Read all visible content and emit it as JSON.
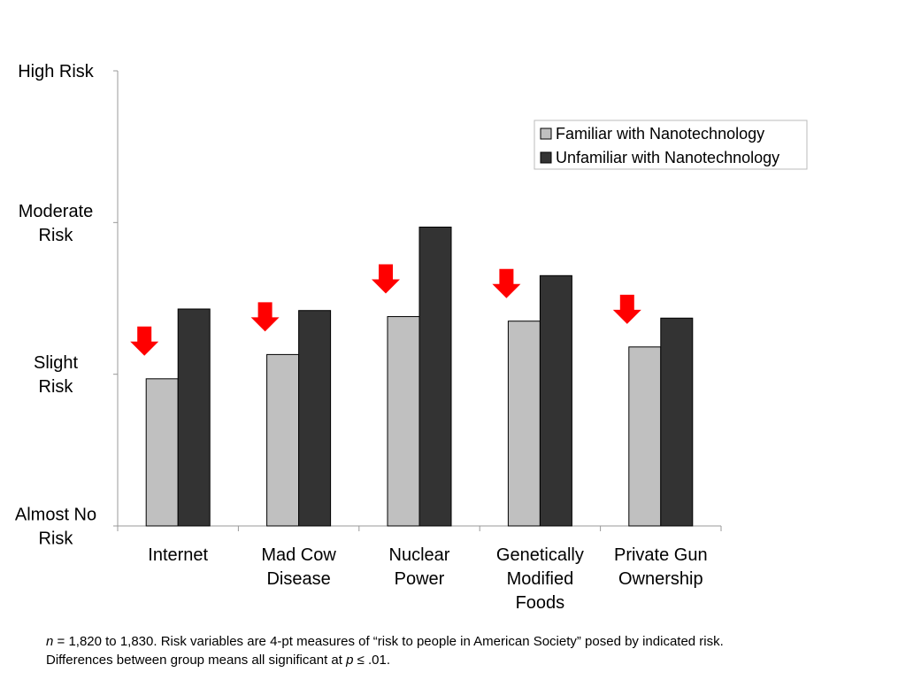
{
  "chart_data": {
    "type": "bar",
    "title": "",
    "xlabel": "",
    "ylabel": "",
    "categories": [
      [
        "Internet"
      ],
      [
        "Mad Cow",
        "Disease"
      ],
      [
        "Nuclear",
        "Power"
      ],
      [
        "Genetically",
        "Modified",
        "Foods"
      ],
      [
        "Private Gun",
        "Ownership"
      ]
    ],
    "category_names": [
      "Internet",
      "Mad Cow Disease",
      "Nuclear Power",
      "Genetically Modified Foods",
      "Private Gun Ownership"
    ],
    "y_ticks": [
      {
        "value": 1,
        "lines": [
          "Almost No",
          "Risk"
        ]
      },
      {
        "value": 2,
        "lines": [
          "Slight",
          "Risk"
        ]
      },
      {
        "value": 3,
        "lines": [
          "Moderate",
          "Risk"
        ]
      },
      {
        "value": 4,
        "lines": [
          "High Risk"
        ]
      }
    ],
    "ylim": [
      1,
      4
    ],
    "grid": false,
    "legend_position": "top-right",
    "series": [
      {
        "name": "Familiar with Nanotechnology",
        "color": "#c0c0c0",
        "values": [
          1.97,
          2.13,
          2.38,
          2.35,
          2.18
        ]
      },
      {
        "name": "Unfamiliar with Nanotechnology",
        "color": "#333333",
        "values": [
          2.43,
          2.42,
          2.97,
          2.65,
          2.37
        ]
      }
    ],
    "annotations": {
      "type": "down-arrow",
      "color": "#ff0000",
      "over_series": 0
    }
  },
  "footnote": {
    "n_symbol": "n",
    "part1": " = 1,820 to 1,830. Risk variables are 4-pt measures of “risk to people in American Society” posed by indicated risk. Differences between group means all significant at ",
    "p_symbol": "p",
    "part2": " ≤ .01."
  }
}
